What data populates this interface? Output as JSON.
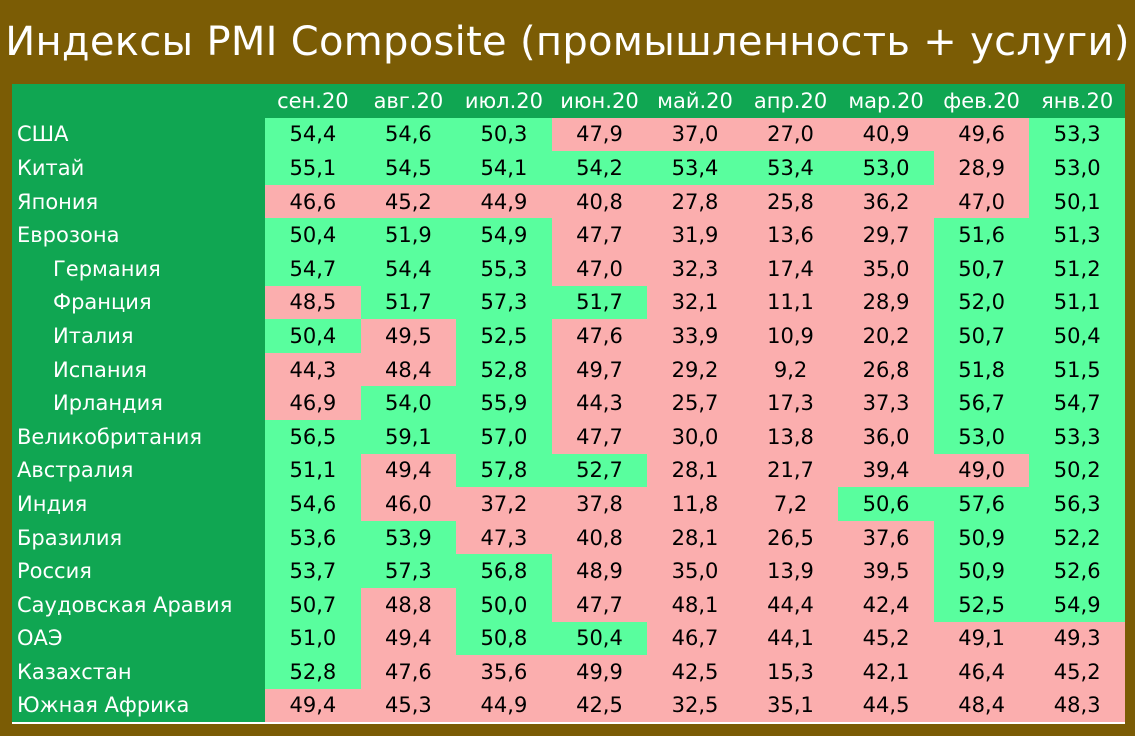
{
  "title": "Индексы PMI Composite (промышленность + услуги)",
  "colors": {
    "frame": "#7b5c05",
    "header_green": "#10a652",
    "cell_up": "#59fe9e",
    "cell_down": "#fbaeae"
  },
  "chart_data": {
    "type": "table",
    "title": "Индексы PMI Composite (промышленность + услуги)",
    "columns": [
      "сен.20",
      "авг.20",
      "июл.20",
      "июн.20",
      "май.20",
      "апр.20",
      "мар.20",
      "фев.20",
      "янв.20"
    ],
    "rows": [
      {
        "label": "США",
        "indent": false,
        "values": [
          "54,4",
          "54,6",
          "50,3",
          "47,9",
          "37,0",
          "27,0",
          "40,9",
          "49,6",
          "53,3"
        ]
      },
      {
        "label": "Китай",
        "indent": false,
        "values": [
          "55,1",
          "54,5",
          "54,1",
          "54,2",
          "53,4",
          "53,4",
          "53,0",
          "28,9",
          "53,0"
        ]
      },
      {
        "label": "Япония",
        "indent": false,
        "values": [
          "46,6",
          "45,2",
          "44,9",
          "40,8",
          "27,8",
          "25,8",
          "36,2",
          "47,0",
          "50,1"
        ]
      },
      {
        "label": "Еврозона",
        "indent": false,
        "values": [
          "50,4",
          "51,9",
          "54,9",
          "47,7",
          "31,9",
          "13,6",
          "29,7",
          "51,6",
          "51,3"
        ]
      },
      {
        "label": "Германия",
        "indent": true,
        "values": [
          "54,7",
          "54,4",
          "55,3",
          "47,0",
          "32,3",
          "17,4",
          "35,0",
          "50,7",
          "51,2"
        ]
      },
      {
        "label": "Франция",
        "indent": true,
        "values": [
          "48,5",
          "51,7",
          "57,3",
          "51,7",
          "32,1",
          "11,1",
          "28,9",
          "52,0",
          "51,1"
        ]
      },
      {
        "label": "Италия",
        "indent": true,
        "values": [
          "50,4",
          "49,5",
          "52,5",
          "47,6",
          "33,9",
          "10,9",
          "20,2",
          "50,7",
          "50,4"
        ]
      },
      {
        "label": "Испания",
        "indent": true,
        "values": [
          "44,3",
          "48,4",
          "52,8",
          "49,7",
          "29,2",
          "9,2",
          "26,8",
          "51,8",
          "51,5"
        ]
      },
      {
        "label": "Ирландия",
        "indent": true,
        "values": [
          "46,9",
          "54,0",
          "55,9",
          "44,3",
          "25,7",
          "17,3",
          "37,3",
          "56,7",
          "54,7"
        ]
      },
      {
        "label": "Великобритания",
        "indent": false,
        "values": [
          "56,5",
          "59,1",
          "57,0",
          "47,7",
          "30,0",
          "13,8",
          "36,0",
          "53,0",
          "53,3"
        ]
      },
      {
        "label": "Австралия",
        "indent": false,
        "values": [
          "51,1",
          "49,4",
          "57,8",
          "52,7",
          "28,1",
          "21,7",
          "39,4",
          "49,0",
          "50,2"
        ]
      },
      {
        "label": "Индия",
        "indent": false,
        "values": [
          "54,6",
          "46,0",
          "37,2",
          "37,8",
          "11,8",
          "7,2",
          "50,6",
          "57,6",
          "56,3"
        ]
      },
      {
        "label": "Бразилия",
        "indent": false,
        "values": [
          "53,6",
          "53,9",
          "47,3",
          "40,8",
          "28,1",
          "26,5",
          "37,6",
          "50,9",
          "52,2"
        ]
      },
      {
        "label": "Россия",
        "indent": false,
        "values": [
          "53,7",
          "57,3",
          "56,8",
          "48,9",
          "35,0",
          "13,9",
          "39,5",
          "50,9",
          "52,6"
        ]
      },
      {
        "label": "Саудовская Аравия",
        "indent": false,
        "values": [
          "50,7",
          "48,8",
          "50,0",
          "47,7",
          "48,1",
          "44,4",
          "42,4",
          "52,5",
          "54,9"
        ]
      },
      {
        "label": "ОАЭ",
        "indent": false,
        "values": [
          "51,0",
          "49,4",
          "50,8",
          "50,4",
          "46,7",
          "44,1",
          "45,2",
          "49,1",
          "49,3"
        ]
      },
      {
        "label": "Казахстан",
        "indent": false,
        "values": [
          "52,8",
          "47,6",
          "35,6",
          "49,9",
          "42,5",
          "15,3",
          "42,1",
          "46,4",
          "45,2"
        ]
      },
      {
        "label": "Южная Африка",
        "indent": false,
        "values": [
          "49,4",
          "45,3",
          "44,9",
          "42,5",
          "32,5",
          "35,1",
          "44,5",
          "48,4",
          "48,3"
        ]
      }
    ],
    "threshold": 50
  }
}
